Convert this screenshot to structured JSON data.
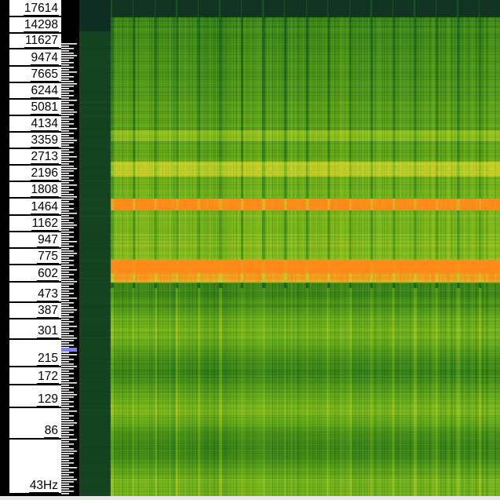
{
  "frequency_scale": {
    "labels": [
      "17614",
      "14298",
      "11627",
      "9474",
      "7665",
      "6244",
      "5081",
      "4134",
      "3359",
      "2713",
      "2196",
      "1808",
      "1464",
      "1162",
      "947",
      "775",
      "602",
      "473",
      "387",
      "301",
      "215",
      "172",
      "129",
      "86",
      "43Hz"
    ]
  },
  "piano": {
    "highlight_color": "#8080ff"
  },
  "spectrogram": {
    "colors": {
      "background": "#0d2a24",
      "low": "#1f6a18",
      "mid": "#6fb01a",
      "high": "#c7d22a",
      "hot": "#ff8a1a"
    },
    "beat_columns": 18
  }
}
